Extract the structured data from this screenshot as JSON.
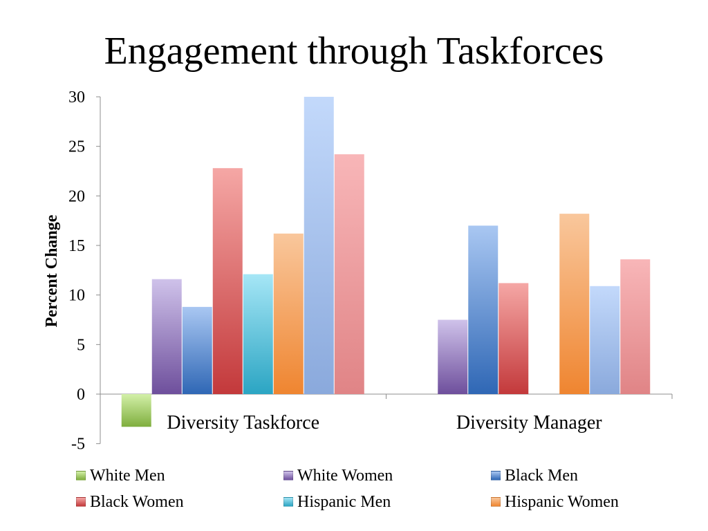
{
  "chart_data": {
    "type": "bar",
    "title": "Engagement through Taskforces",
    "ylabel": "Percent Change",
    "xlabel": "",
    "ylim": [
      -5,
      30
    ],
    "yticks": [
      30,
      25,
      20,
      15,
      10,
      5,
      0,
      -5
    ],
    "categories": [
      "Diversity Taskforce",
      "Diversity Manager"
    ],
    "series": [
      {
        "name": "White Men",
        "values": [
          -3.3,
          null
        ],
        "color_light": "#d3f0a8",
        "color_dark": "#7fae3e"
      },
      {
        "name": "White Women",
        "values": [
          11.6,
          7.5
        ],
        "color_light": "#cfc2ea",
        "color_dark": "#6e4f9c"
      },
      {
        "name": "Black Men",
        "values": [
          8.8,
          17.0
        ],
        "color_light": "#a9c7f2",
        "color_dark": "#2f67b5"
      },
      {
        "name": "Black Women",
        "values": [
          22.8,
          11.2
        ],
        "color_light": "#f5a7a5",
        "color_dark": "#c3393b"
      },
      {
        "name": "Hispanic Men",
        "values": [
          12.1,
          null
        ],
        "color_light": "#a6e6f6",
        "color_dark": "#2ba5c3"
      },
      {
        "name": "Hispanic Women",
        "values": [
          16.2,
          18.2
        ],
        "color_light": "#f9c79c",
        "color_dark": "#ef8530"
      },
      {
        "name": "",
        "values": [
          30.0,
          10.9
        ],
        "color_light": "#c3d9fb",
        "color_dark": "#8aa9dc"
      },
      {
        "name": "",
        "values": [
          24.2,
          13.6
        ],
        "color_light": "#f8b6b8",
        "color_dark": "#e08486"
      }
    ],
    "grid": false,
    "legend_position": "bottom"
  }
}
